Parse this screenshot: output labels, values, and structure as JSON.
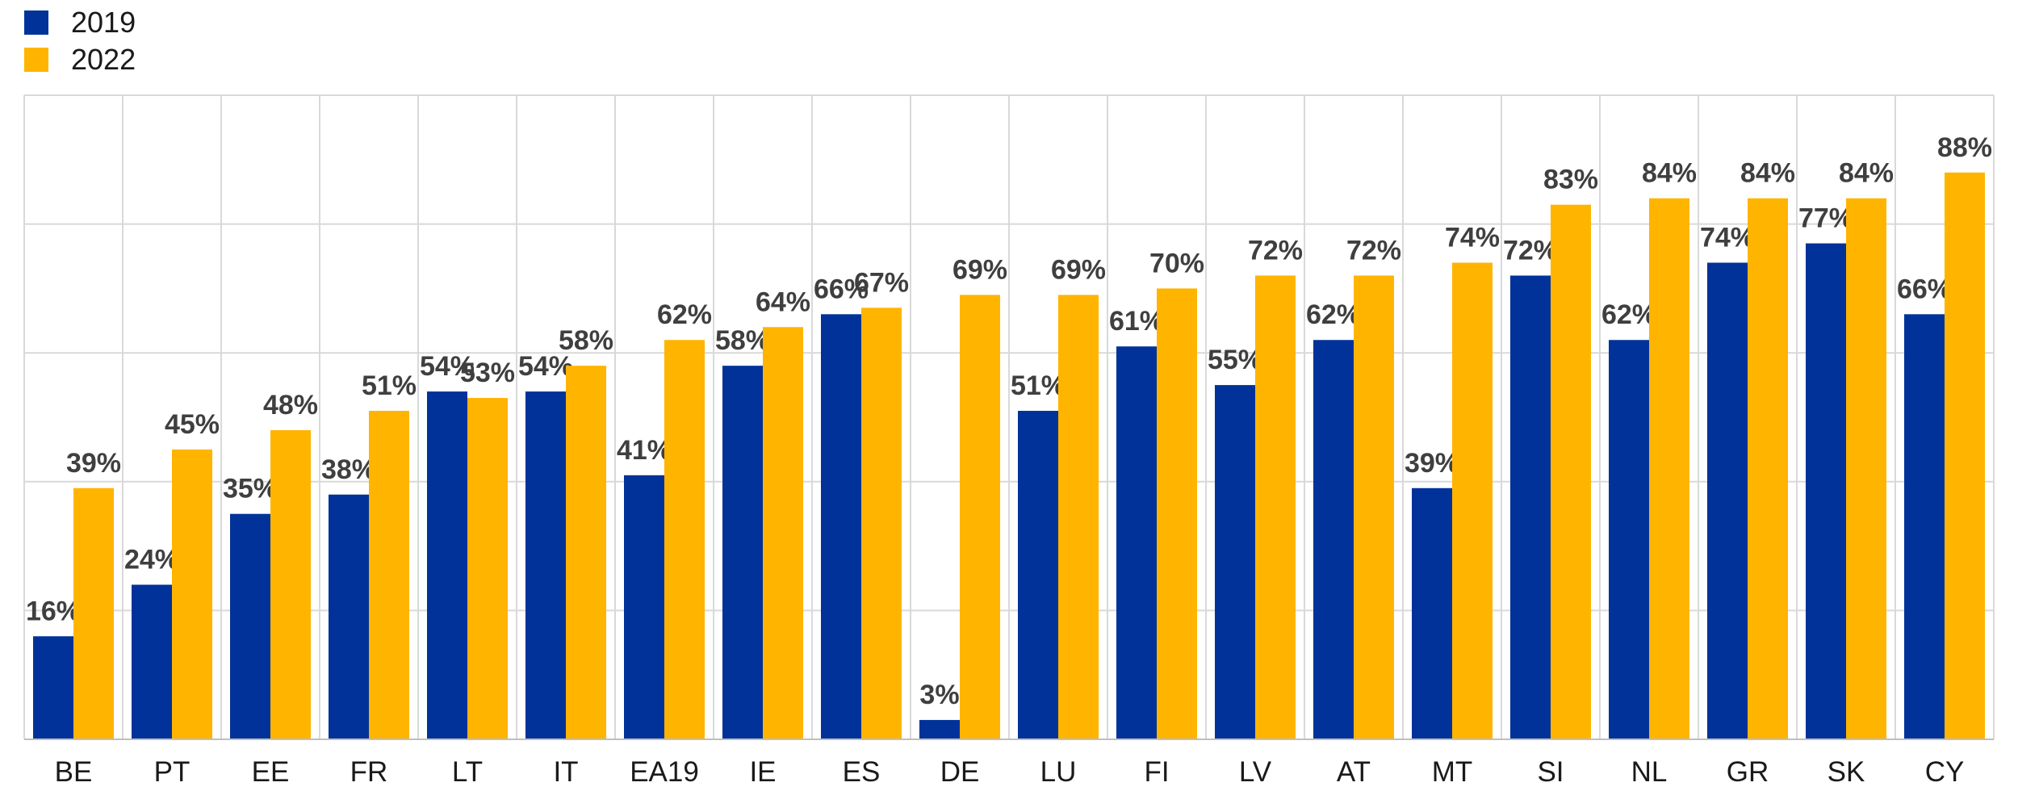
{
  "chart_data": {
    "type": "bar",
    "categories": [
      "BE",
      "PT",
      "EE",
      "FR",
      "LT",
      "IT",
      "EA19",
      "IE",
      "ES",
      "DE",
      "LU",
      "FI",
      "LV",
      "AT",
      "MT",
      "SI",
      "NL",
      "GR",
      "SK",
      "CY"
    ],
    "series": [
      {
        "name": "2019",
        "color": "#003299",
        "values": [
          16,
          24,
          35,
          38,
          54,
          54,
          41,
          58,
          66,
          3,
          51,
          61,
          55,
          62,
          39,
          72,
          62,
          74,
          77,
          66
        ],
        "labels": [
          "16%",
          "24%",
          "35%",
          "38%",
          "54%",
          "54%",
          "41%",
          "58%",
          "66%",
          "3%",
          "51%",
          "61%",
          "55%",
          "62%",
          "39%",
          "72%",
          "62%",
          "74%",
          "77%",
          "66%"
        ]
      },
      {
        "name": "2022",
        "color": "#FFB400",
        "values": [
          39,
          45,
          48,
          51,
          53,
          58,
          62,
          64,
          67,
          69,
          69,
          70,
          72,
          72,
          74,
          83,
          84,
          84,
          84,
          88
        ],
        "labels": [
          "39%",
          "45%",
          "48%",
          "51%",
          "53%",
          "58%",
          "62%",
          "64%",
          "67%",
          "69%",
          "69%",
          "70%",
          "72%",
          "72%",
          "74%",
          "83%",
          "84%",
          "84%",
          "84%",
          "88%"
        ]
      }
    ],
    "ylim": [
      0,
      100
    ],
    "grid": true,
    "legend_position": "top-left",
    "title": "",
    "xlabel": "",
    "ylabel": ""
  }
}
